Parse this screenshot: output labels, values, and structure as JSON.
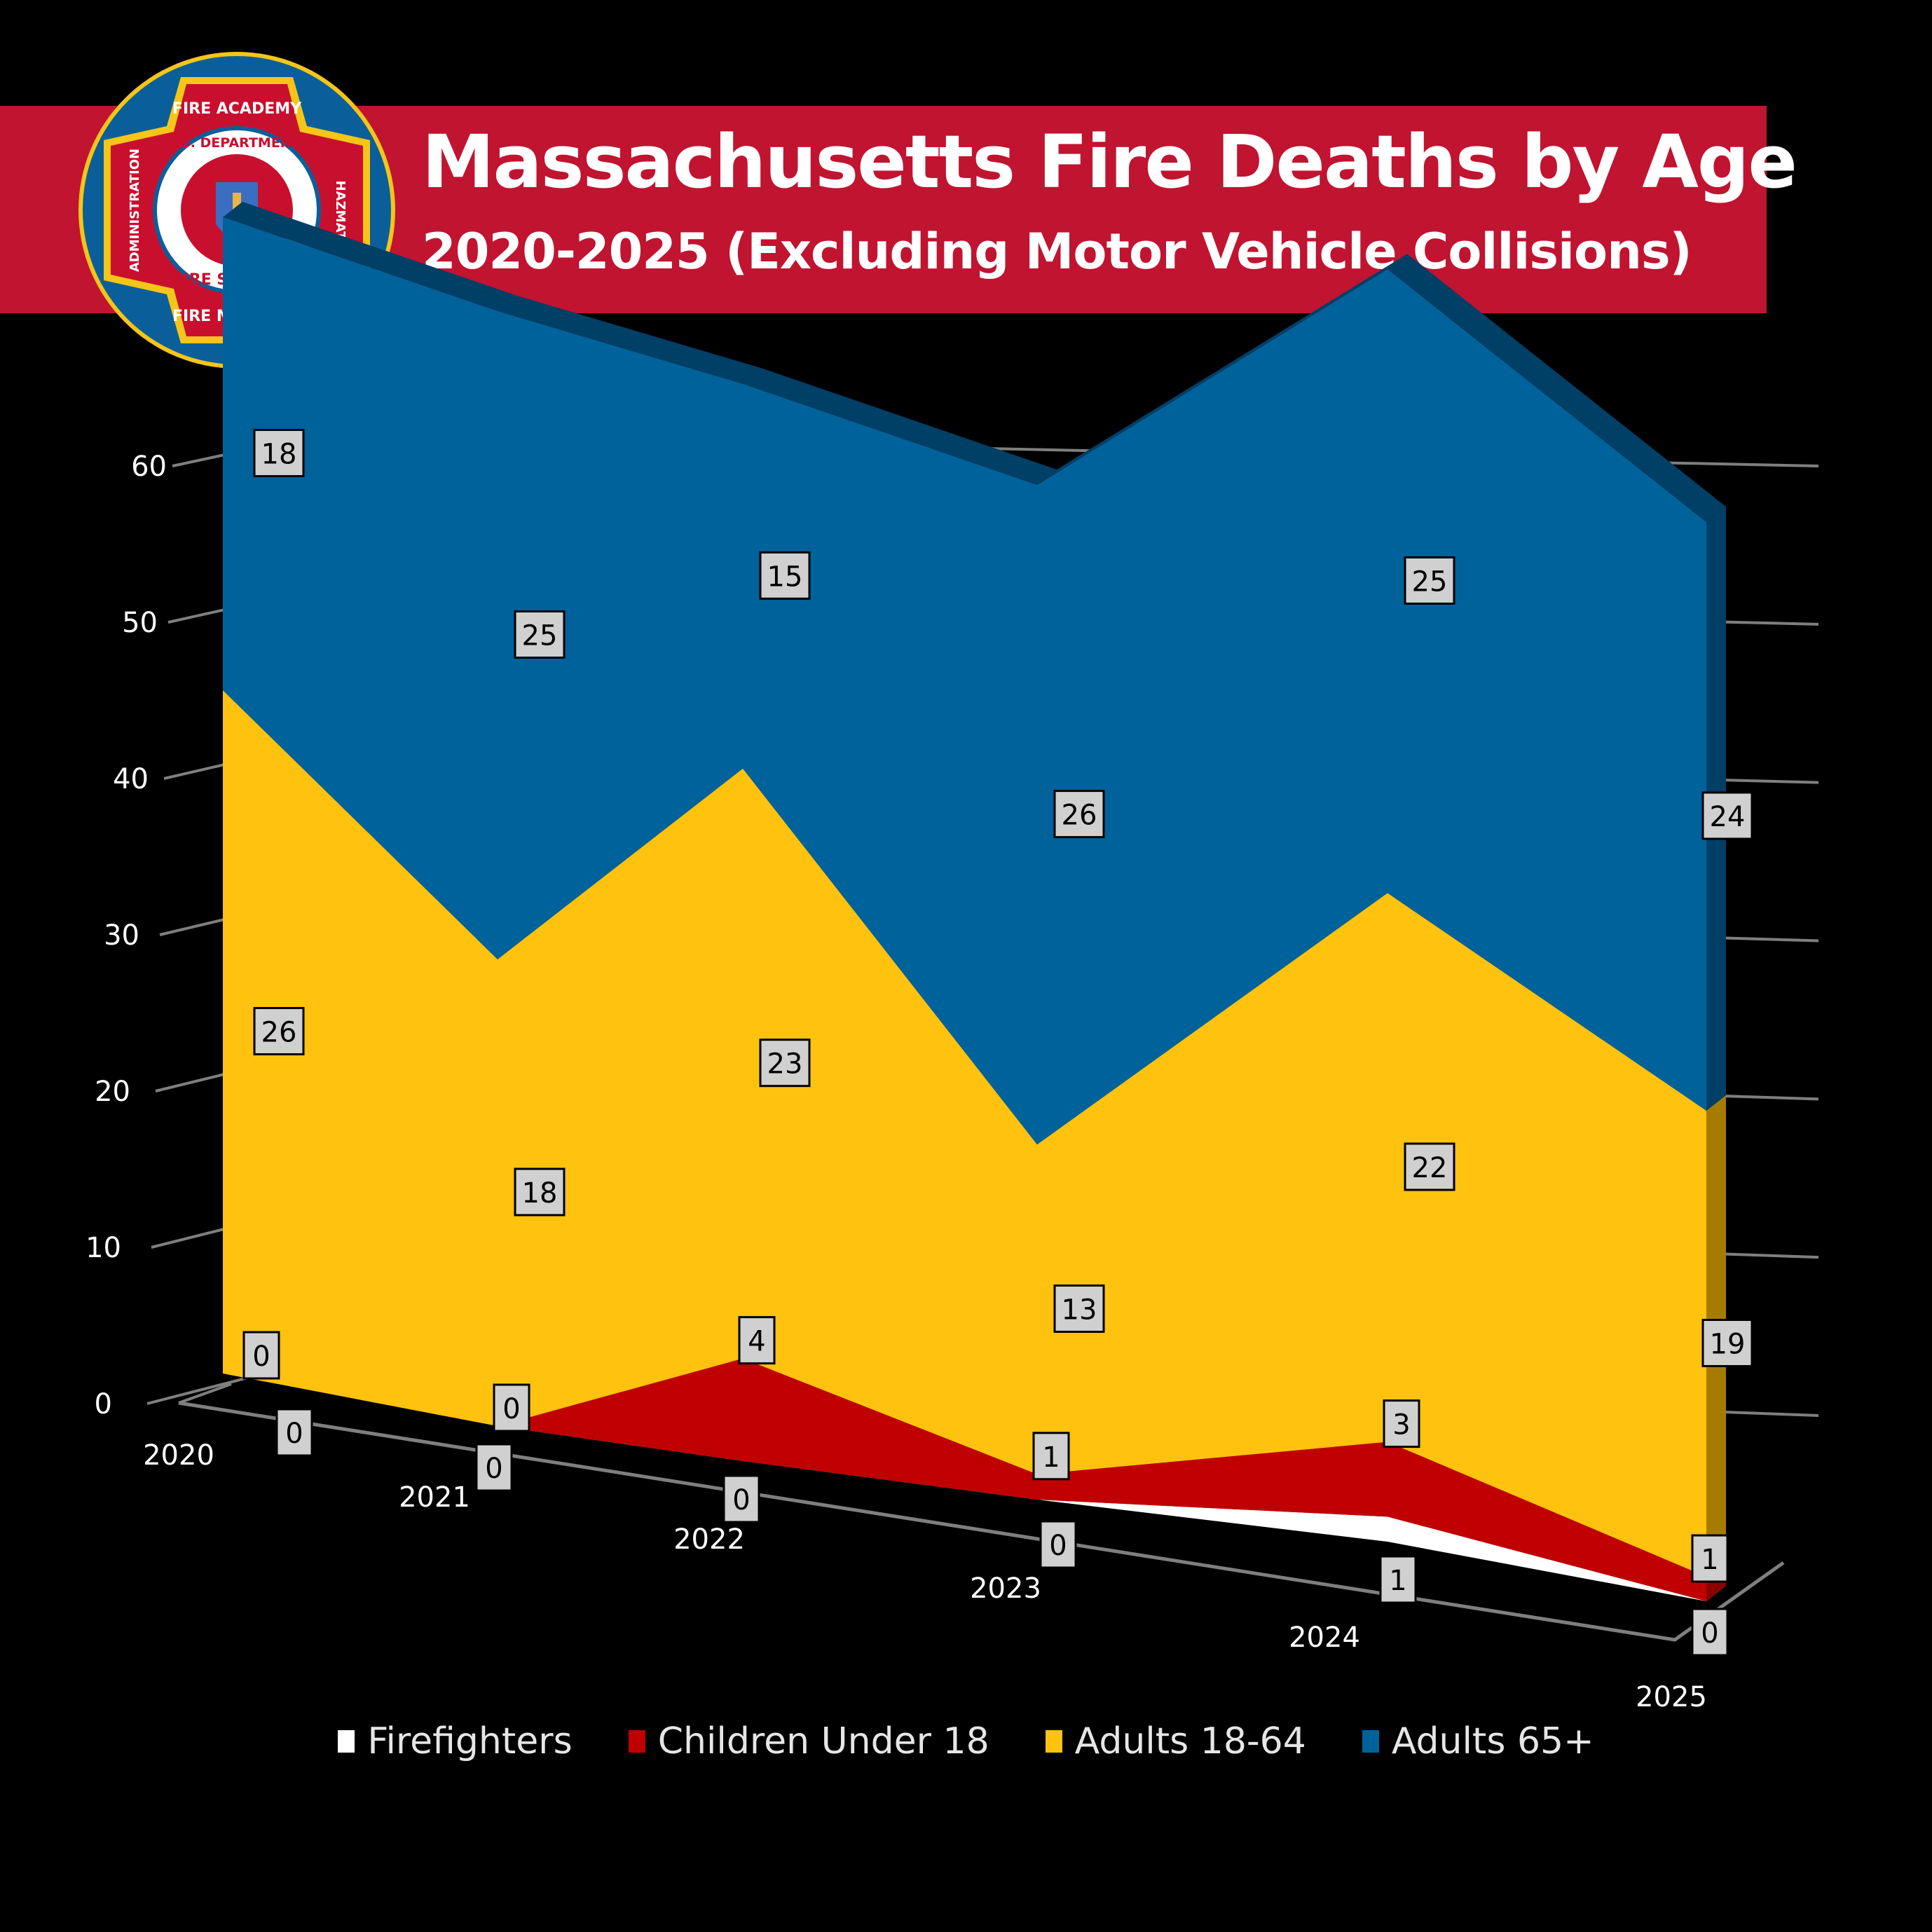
{
  "header": {
    "title": "Massachusetts Fire Deaths by Age",
    "subtitle": "2020-2025 (Excluding Motor Vehicle Collisions)",
    "banner_color": "#c01431"
  },
  "logo": {
    "outer_text_top": "FIRE ACADEMY",
    "outer_text_left": "ADMINISTRATION",
    "outer_text_right": "HAZMAT",
    "outer_text_bottom": "FIRE MARSHAL",
    "inner_text_top": "MASS. DEPARTMENT OF",
    "inner_text_bottom": "FIRE SERVICES"
  },
  "legend": {
    "items": [
      {
        "label": "Firefighters",
        "color": "#ffffff"
      },
      {
        "label": "Children Under 18",
        "color": "#c00000"
      },
      {
        "label": "Adults 18-64",
        "color": "#ffc20e"
      },
      {
        "label": "Adults 65+",
        "color": "#00629a"
      }
    ]
  },
  "chart_data": {
    "type": "area",
    "stacked": true,
    "three_d": true,
    "title": "Massachusetts Fire Deaths by Age",
    "subtitle": "2020-2025 (Excluding Motor Vehicle Collisions)",
    "xlabel": "",
    "ylabel": "",
    "categories": [
      "2020",
      "2021",
      "2022",
      "2023",
      "2024",
      "2025"
    ],
    "y_ticks": [
      "0",
      "10",
      "20",
      "30",
      "40",
      "50",
      "60"
    ],
    "ylim": [
      0,
      60
    ],
    "grid": true,
    "legend_position": "bottom",
    "series": [
      {
        "name": "Firefighters",
        "color": "#ffffff",
        "values": [
          0,
          0,
          0,
          0,
          1,
          0
        ]
      },
      {
        "name": "Children Under 18",
        "color": "#c00000",
        "values": [
          0,
          0,
          4,
          1,
          3,
          1
        ]
      },
      {
        "name": "Adults 18-64",
        "color": "#ffc20e",
        "values": [
          26,
          18,
          23,
          13,
          22,
          19
        ]
      },
      {
        "name": "Adults 65+",
        "color": "#00629a",
        "values": [
          18,
          25,
          15,
          26,
          25,
          24
        ]
      }
    ]
  }
}
